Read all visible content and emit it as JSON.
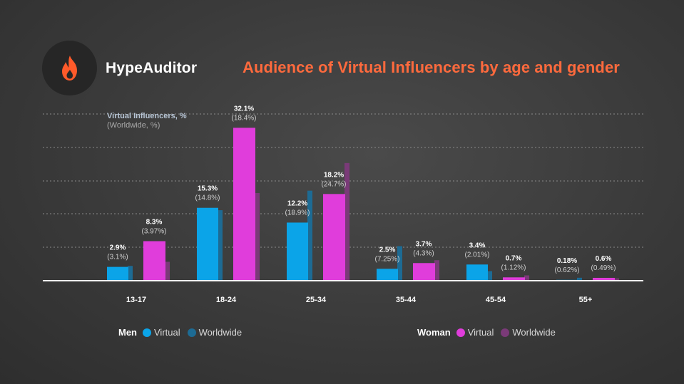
{
  "brand": {
    "name": "HypeAuditor"
  },
  "header": {
    "title": "Audience of Virtual Influencers by age and gender"
  },
  "colors": {
    "men_virtual": "#0ba4e8",
    "men_worldwide": "#1d6b94",
    "women_virtual": "#e03ddb",
    "women_worldwide": "#7a3a78",
    "title": "#ff6a3d",
    "logo_flame": "#ff5a2a"
  },
  "legend": {
    "men": {
      "label": "Men",
      "virtual": "Virtual",
      "worldwide": "Worldwide"
    },
    "women": {
      "label": "Woman",
      "virtual": "Virtual",
      "worldwide": "Worldwide"
    }
  },
  "chart_data": {
    "type": "bar",
    "ylabel": "Virtual Influencers, %",
    "ylabel_sub": "(Worldwide, %)",
    "ylim": [
      0,
      35
    ],
    "grid": true,
    "categories": [
      "13-17",
      "18-24",
      "25-34",
      "35-44",
      "45-54",
      "55+"
    ],
    "series": [
      {
        "name": "Men Virtual",
        "key": "men_virtual",
        "values": [
          2.9,
          15.3,
          12.2,
          2.5,
          3.4,
          0.18
        ],
        "labels": [
          "2.9%",
          "15.3%",
          "12.2%",
          "2.5%",
          "3.4%",
          "0.18%"
        ]
      },
      {
        "name": "Men Worldwide",
        "key": "men_worldwide",
        "values": [
          3.1,
          14.8,
          18.9,
          7.25,
          2.01,
          0.62
        ],
        "labels": [
          "(3.1%)",
          "(14.8%)",
          "(18.9%)",
          "(7.25%)",
          "(2.01%)",
          "(0.62%)"
        ]
      },
      {
        "name": "Woman Virtual",
        "key": "women_virtual",
        "values": [
          8.3,
          32.1,
          18.2,
          3.7,
          0.7,
          0.6
        ],
        "labels": [
          "8.3%",
          "32.1%",
          "18.2%",
          "3.7%",
          "0.7%",
          "0.6%"
        ]
      },
      {
        "name": "Woman Worldwide",
        "key": "women_worldwide",
        "values": [
          3.97,
          18.4,
          24.7,
          4.3,
          1.12,
          0.49
        ],
        "labels": [
          "(3.97%)",
          "(18.4%)",
          "(24.7%)",
          "(4.3%)",
          "(1.12%)",
          "(0.49%)"
        ]
      }
    ]
  }
}
